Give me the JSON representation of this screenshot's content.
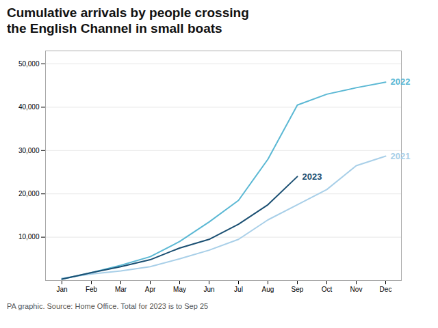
{
  "chart_data": {
    "type": "line",
    "title": "Cumulative arrivals by people crossing\nthe English Channel in small boats",
    "caption": "PA graphic. Source: Home Office. Total for 2023 is to Sep 25",
    "categories": [
      "Jan",
      "Feb",
      "Mar",
      "Apr",
      "May",
      "Jun",
      "Jul",
      "Aug",
      "Sep",
      "Oct",
      "Nov",
      "Dec"
    ],
    "series": [
      {
        "name": "2021",
        "color": "#a8cfe8",
        "values": [
          500,
          1500,
          2200,
          3200,
          5000,
          7000,
          9500,
          14000,
          17500,
          21000,
          26500,
          28700
        ]
      },
      {
        "name": "2022",
        "color": "#5bb8d4",
        "values": [
          300,
          1800,
          3500,
          5500,
          9000,
          13500,
          18500,
          28000,
          40500,
          43000,
          44500,
          45800
        ]
      },
      {
        "name": "2023",
        "color": "#1a4f72",
        "values": [
          300,
          1800,
          3200,
          4800,
          7500,
          9500,
          13000,
          17500,
          24000,
          null,
          null,
          null
        ]
      }
    ],
    "ylim": [
      0,
      53000
    ],
    "yticks": [
      {
        "value": 10000,
        "label": "10,000"
      },
      {
        "value": 20000,
        "label": "20,000"
      },
      {
        "value": 30000,
        "label": "30,000"
      },
      {
        "value": 40000,
        "label": "40,000"
      },
      {
        "value": 50000,
        "label": "50,000"
      }
    ],
    "grid": true
  }
}
